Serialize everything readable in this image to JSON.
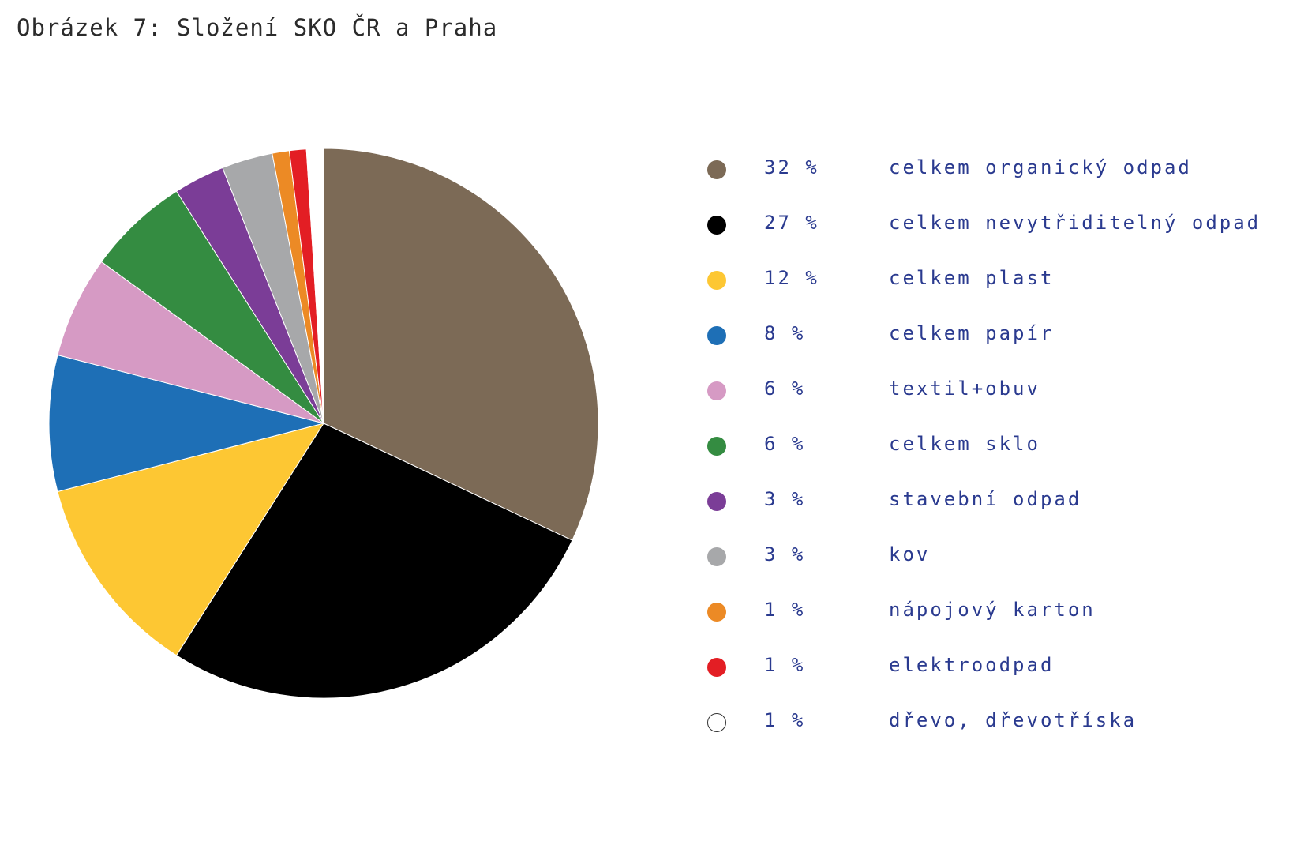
{
  "title": "Obrázek 7: Složení SKO ČR a Praha",
  "chart_data": {
    "type": "pie",
    "title": "Obrázek 7: Složení SKO ČR a Praha",
    "unit": "%",
    "slices": [
      {
        "label": "celkem organický odpad",
        "value": 32,
        "display": "32 %",
        "color": "#7c6a56"
      },
      {
        "label": "celkem nevytřiditelný odpad",
        "value": 27,
        "display": "27 %",
        "color": "#000000"
      },
      {
        "label": "celkem plast",
        "value": 12,
        "display": "12 %",
        "color": "#fdc733"
      },
      {
        "label": "celkem papír",
        "value": 8,
        "display": "8 %",
        "color": "#1e6fb6"
      },
      {
        "label": "textil+obuv",
        "value": 6,
        "display": "6 %",
        "color": "#d69ac4"
      },
      {
        "label": "celkem sklo",
        "value": 6,
        "display": "6 %",
        "color": "#348c41"
      },
      {
        "label": "stavební odpad",
        "value": 3,
        "display": "3 %",
        "color": "#7b3d97"
      },
      {
        "label": "kov",
        "value": 3,
        "display": "3 %",
        "color": "#a7a8aa"
      },
      {
        "label": "nápojový karton",
        "value": 1,
        "display": "1 %",
        "color": "#ec8a25"
      },
      {
        "label": "elektroodpad",
        "value": 1,
        "display": "1 %",
        "color": "#e31e24"
      },
      {
        "label": "dřevo, dřevotříska",
        "value": 1,
        "display": "1 %",
        "color": "#ffffff"
      }
    ],
    "legend_position": "right"
  }
}
